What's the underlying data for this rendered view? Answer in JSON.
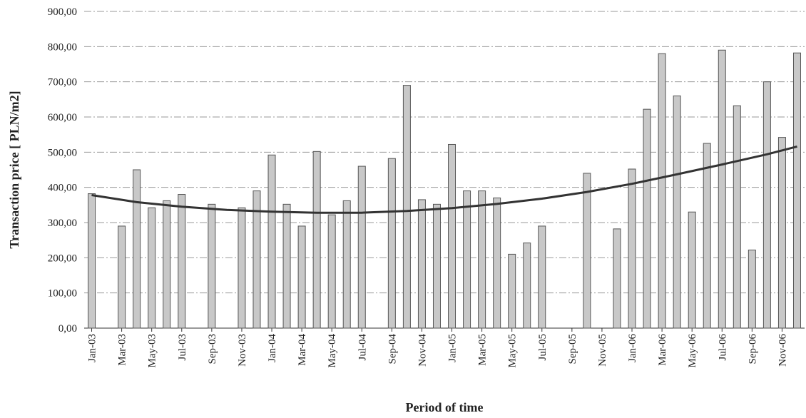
{
  "chart_data": {
    "type": "bar",
    "xlabel": "Period of time",
    "ylabel": "Transaction price [ PLN/m2]",
    "ylim": [
      0,
      900
    ],
    "yticks": [
      "0,00",
      "100,00",
      "200,00",
      "300,00",
      "400,00",
      "500,00",
      "600,00",
      "700,00",
      "800,00",
      "900,00"
    ],
    "xtick_labels": [
      "Jan-03",
      "Mar-03",
      "May-03",
      "Jul-03",
      "Sep-03",
      "Nov-03",
      "Jan-04",
      "Mar-04",
      "May-04",
      "Jul-04",
      "Sep-04",
      "Nov-04",
      "Jan-05",
      "Mar-05",
      "May-05",
      "Jul-05",
      "Sep-05",
      "Nov-05",
      "Jan-06",
      "Mar-06",
      "May-06",
      "Jul-06",
      "Sep-06",
      "Nov-06"
    ],
    "grid": true,
    "colors": {
      "bar_fill": "#c8c8c8",
      "bar_stroke": "#555555",
      "trend": "#333333",
      "grid": "#9a9a9a"
    },
    "bars": [
      {
        "month": "Jan-03",
        "value": 382
      },
      {
        "month": "Mar-03",
        "value": 290
      },
      {
        "month": "Apr-03",
        "value": 450
      },
      {
        "month": "May-03",
        "value": 342
      },
      {
        "month": "Jun-03",
        "value": 362
      },
      {
        "month": "Jul-03",
        "value": 380
      },
      {
        "month": "Sep-03",
        "value": 352
      },
      {
        "month": "Nov-03",
        "value": 342
      },
      {
        "month": "Dec-03",
        "value": 390
      },
      {
        "month": "Jan-04",
        "value": 492
      },
      {
        "month": "Feb-04",
        "value": 352
      },
      {
        "month": "Mar-04",
        "value": 290
      },
      {
        "month": "Apr-04",
        "value": 502
      },
      {
        "month": "May-04",
        "value": 322
      },
      {
        "month": "Jun-04",
        "value": 362
      },
      {
        "month": "Jul-04",
        "value": 460
      },
      {
        "month": "Sep-04",
        "value": 482
      },
      {
        "month": "Oct-04",
        "value": 690
      },
      {
        "month": "Nov-04",
        "value": 365
      },
      {
        "month": "Dec-04",
        "value": 352
      },
      {
        "month": "Jan-05",
        "value": 522
      },
      {
        "month": "Feb-05",
        "value": 390
      },
      {
        "month": "Mar-05",
        "value": 390
      },
      {
        "month": "Apr-05",
        "value": 370
      },
      {
        "month": "May-05",
        "value": 210
      },
      {
        "month": "Jun-05",
        "value": 242
      },
      {
        "month": "Jul-05",
        "value": 290
      },
      {
        "month": "Oct-05",
        "value": 440
      },
      {
        "month": "Dec-05",
        "value": 282
      },
      {
        "month": "Jan-06",
        "value": 452
      },
      {
        "month": "Feb-06",
        "value": 622
      },
      {
        "month": "Mar-06",
        "value": 780
      },
      {
        "month": "Apr-06",
        "value": 660
      },
      {
        "month": "May-06",
        "value": 330
      },
      {
        "month": "Jun-06",
        "value": 525
      },
      {
        "month": "Jul-06",
        "value": 790
      },
      {
        "month": "Aug-06",
        "value": 632
      },
      {
        "month": "Sep-06",
        "value": 222
      },
      {
        "month": "Oct-06",
        "value": 700
      },
      {
        "month": "Nov-06",
        "value": 542
      },
      {
        "month": "Dec-06",
        "value": 782
      }
    ],
    "trend": [
      {
        "month": "Jan-03",
        "value": 378
      },
      {
        "month": "Apr-03",
        "value": 358
      },
      {
        "month": "Jul-03",
        "value": 345
      },
      {
        "month": "Oct-03",
        "value": 336
      },
      {
        "month": "Jan-04",
        "value": 331
      },
      {
        "month": "Apr-04",
        "value": 328
      },
      {
        "month": "Jul-04",
        "value": 328
      },
      {
        "month": "Oct-04",
        "value": 333
      },
      {
        "month": "Jan-05",
        "value": 341
      },
      {
        "month": "Apr-05",
        "value": 353
      },
      {
        "month": "Jul-05",
        "value": 368
      },
      {
        "month": "Oct-05",
        "value": 387
      },
      {
        "month": "Jan-06",
        "value": 410
      },
      {
        "month": "Apr-06",
        "value": 437
      },
      {
        "month": "Jul-06",
        "value": 465
      },
      {
        "month": "Oct-06",
        "value": 494
      },
      {
        "month": "Dec-06",
        "value": 516
      }
    ]
  }
}
